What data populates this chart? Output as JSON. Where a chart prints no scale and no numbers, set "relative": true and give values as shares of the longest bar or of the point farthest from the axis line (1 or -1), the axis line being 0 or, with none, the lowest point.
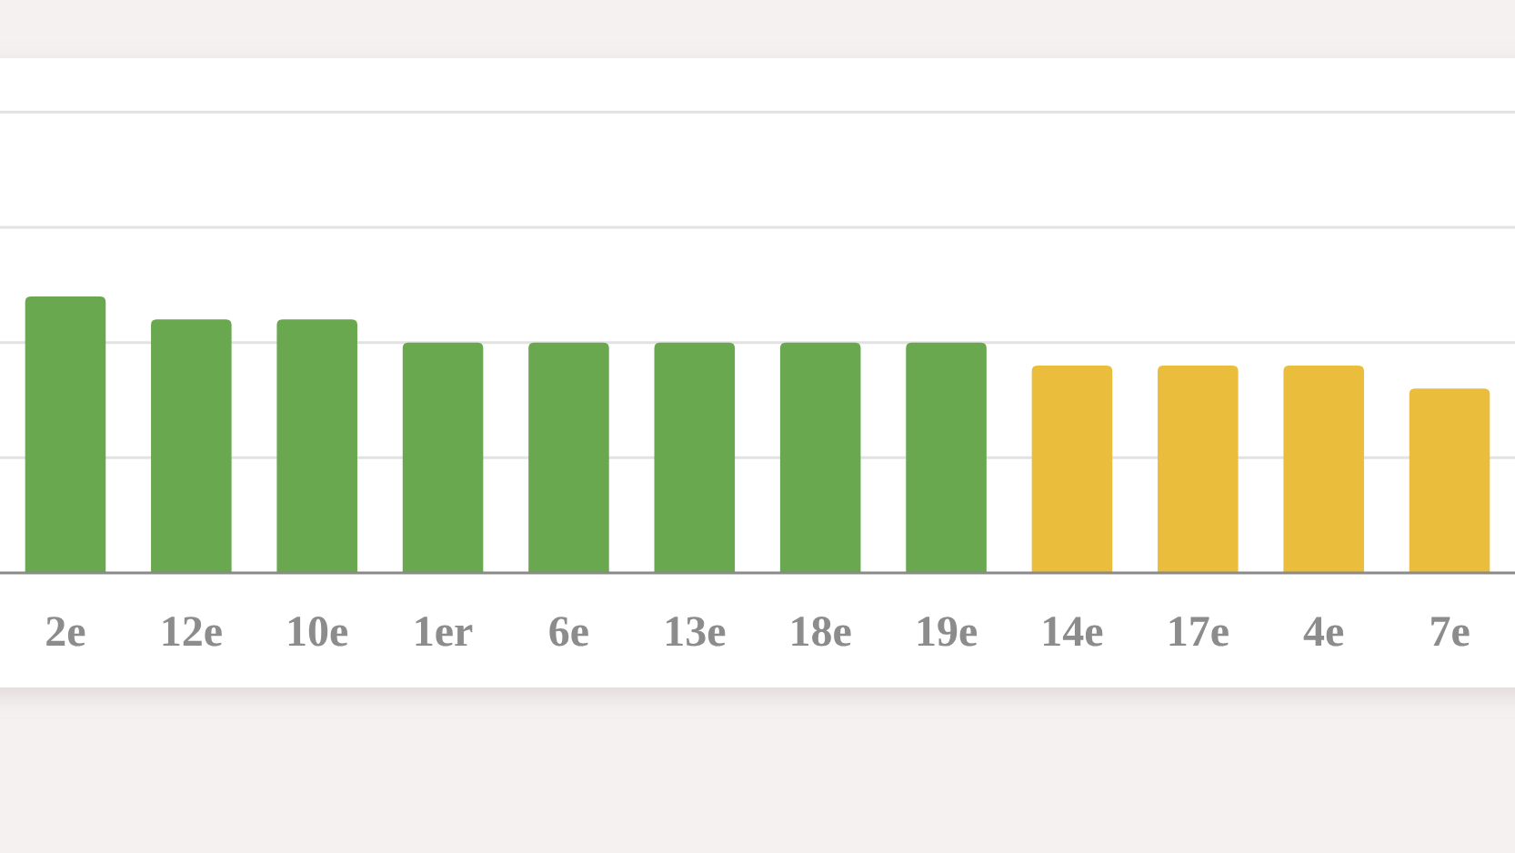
{
  "chart_data": {
    "type": "bar",
    "categories": [
      "2e",
      "12e",
      "10e",
      "1er",
      "6e",
      "13e",
      "18e",
      "19e",
      "14e",
      "17e",
      "4e",
      "7e"
    ],
    "values": [
      1,
      0.917,
      0.917,
      0.833,
      0.833,
      0.833,
      0.833,
      0.833,
      0.75,
      0.75,
      0.75,
      0.667
    ],
    "colors": [
      "#69a84f",
      "#69a84f",
      "#69a84f",
      "#69a84f",
      "#69a84f",
      "#69a84f",
      "#69a84f",
      "#69a84f",
      "#ebbd3c",
      "#ebbd3c",
      "#ebbd3c",
      "#ebbd3c"
    ],
    "relative": true,
    "ref_lines": [
      {
        "axis": "y",
        "value": 0.417,
        "color": "#e2e2e2"
      },
      {
        "axis": "y",
        "value": 0.833,
        "color": "#e2e2e2"
      },
      {
        "axis": "y",
        "value": 1.25,
        "color": "#e2e2e2"
      },
      {
        "axis": "y",
        "value": 1.667,
        "color": "#e2e2e2"
      }
    ]
  }
}
